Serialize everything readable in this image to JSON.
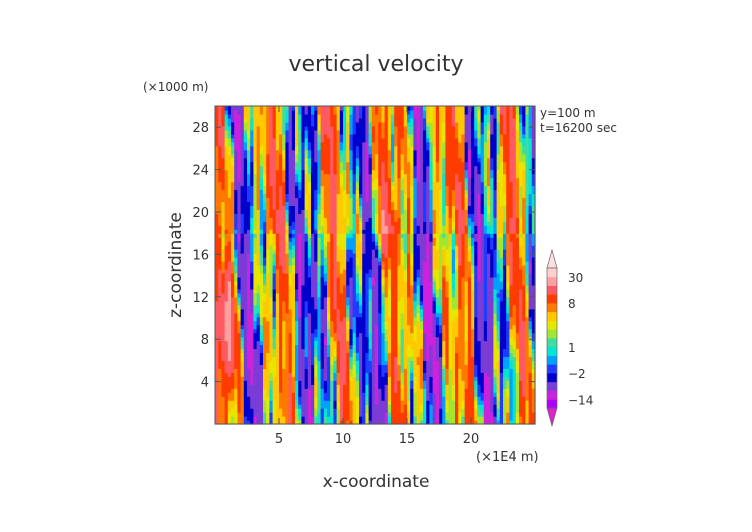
{
  "chart_data": {
    "type": "heatmap",
    "title": "vertical velocity",
    "xlabel": "x-coordinate",
    "ylabel": "z-coordinate",
    "x_unit": "(×1E4 m)",
    "y_unit": "(×1000 m)",
    "annotations": [
      "y=100 m",
      "t=16200 sec"
    ],
    "xlim": [
      0,
      25
    ],
    "ylim": [
      0,
      30
    ],
    "x_ticks": [
      5,
      10,
      15,
      20
    ],
    "y_ticks": [
      4,
      8,
      12,
      16,
      20,
      24,
      28
    ],
    "colorbar": {
      "tick_values": [
        30,
        8,
        1,
        -2,
        -14
      ],
      "tick_labels": [
        "30",
        "8",
        "1",
        "−2",
        "−14"
      ],
      "levels": [
        -20,
        -14,
        -8,
        -4,
        -2,
        -1,
        0,
        1,
        2,
        3,
        4,
        6,
        8,
        12,
        18,
        30
      ],
      "colors": [
        "#aa00ff",
        "#cc22dd",
        "#7b3cd6",
        "#0000cc",
        "#1e3cff",
        "#00a0ff",
        "#00e6d2",
        "#40dca0",
        "#a0e632",
        "#e6e600",
        "#ffc800",
        "#ff7800",
        "#ff3c00",
        "#ff5a64",
        "#ffa0a0",
        "#ffd0d0"
      ],
      "extend": "both",
      "under_color": "#dd22cc",
      "over_color": "#ffe0e0"
    }
  }
}
